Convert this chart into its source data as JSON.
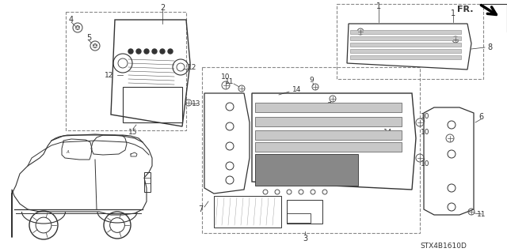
{
  "bg_color": "#ffffff",
  "fig_width": 6.4,
  "fig_height": 3.19,
  "dpi": 100,
  "title_code": "STX4B1610D",
  "lc": "#333333",
  "lc2": "#888888"
}
